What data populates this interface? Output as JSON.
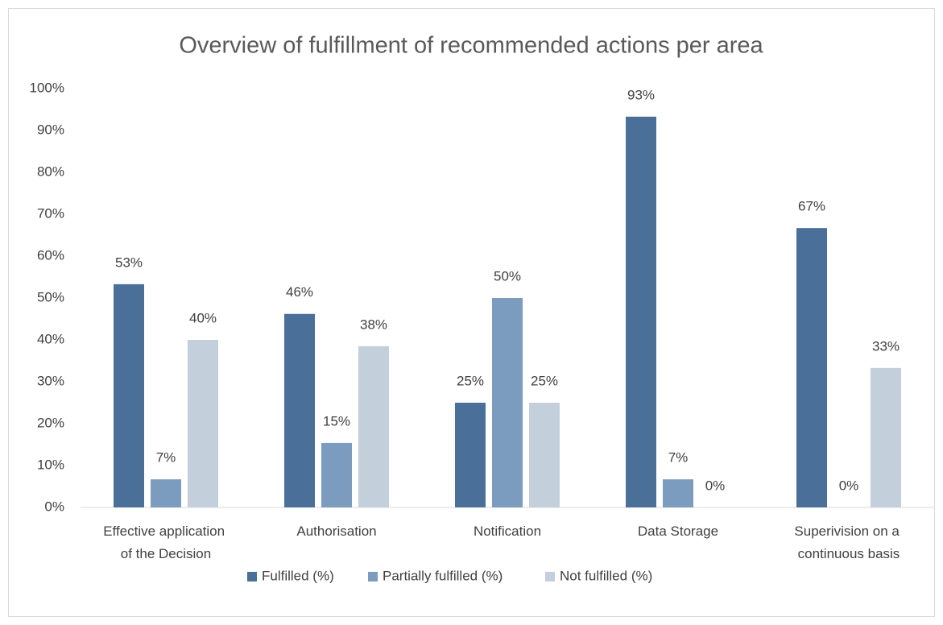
{
  "chart_data": {
    "type": "bar",
    "title": "Overview of fulfillment of recommended actions per area",
    "categories": [
      "Effective application of the Decision",
      "Authorisation",
      "Notification",
      "Data Storage",
      "Superivision on a continuous basis"
    ],
    "series": [
      {
        "name": "Fulfilled (%)",
        "color": "#4a7099",
        "values": [
          53.3,
          46.2,
          25,
          93.3,
          66.7
        ],
        "value_labels": [
          "53%",
          "46%",
          "25%",
          "93%",
          "67%"
        ]
      },
      {
        "name": "Partially fulfilled (%)",
        "color": "#7b9bbf",
        "values": [
          6.7,
          15.4,
          50,
          6.7,
          0
        ],
        "value_labels": [
          "7%",
          "15%",
          "50%",
          "7%",
          "0%"
        ]
      },
      {
        "name": "Not fulfilled (%)",
        "color": "#c4cfdc",
        "values": [
          40,
          38.5,
          25,
          0,
          33.3
        ],
        "value_labels": [
          "40%",
          "38%",
          "25%",
          "0%",
          "33%"
        ]
      }
    ],
    "ylim": [
      0,
      100
    ],
    "yticks": [
      {
        "value": 0,
        "label": "0%"
      },
      {
        "value": 10,
        "label": "10%"
      },
      {
        "value": 20,
        "label": "20%"
      },
      {
        "value": 30,
        "label": "30%"
      },
      {
        "value": 40,
        "label": "40%"
      },
      {
        "value": 50,
        "label": "50%"
      },
      {
        "value": 60,
        "label": "60%"
      },
      {
        "value": 70,
        "label": "70%"
      },
      {
        "value": 80,
        "label": "80%"
      },
      {
        "value": 90,
        "label": "90%"
      },
      {
        "value": 100,
        "label": "100%"
      }
    ],
    "grid": false,
    "legend": "bottom"
  }
}
